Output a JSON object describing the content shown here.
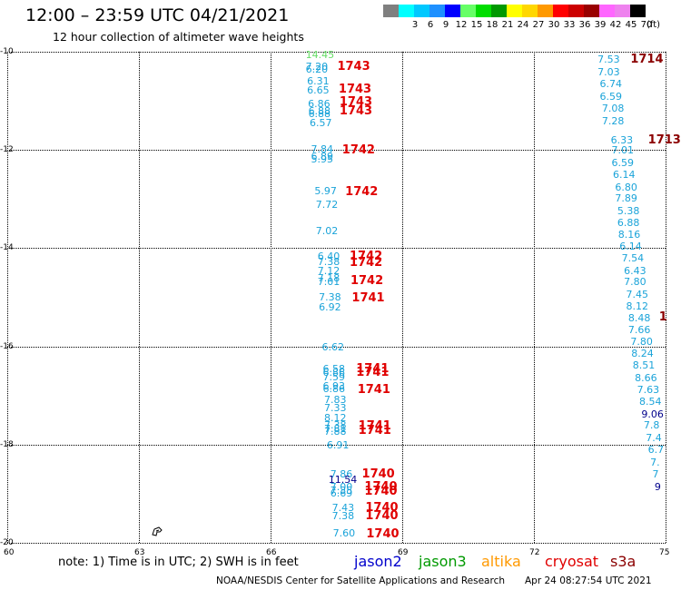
{
  "header": {
    "title": "12:00 – 23:59 UTC 04/21/2021",
    "subtitle": "12 hour collection of altimeter wave heights"
  },
  "legend": {
    "unit": "(ft)",
    "bins": [
      {
        "label": "",
        "color": "#7f7f7f"
      },
      {
        "label": "3",
        "color": "#00ffff"
      },
      {
        "label": "6",
        "color": "#00c8ff"
      },
      {
        "label": "9",
        "color": "#1e90ff"
      },
      {
        "label": "12",
        "color": "#0000ff"
      },
      {
        "label": "15",
        "color": "#66ff66"
      },
      {
        "label": "18",
        "color": "#00dd00"
      },
      {
        "label": "21",
        "color": "#009900"
      },
      {
        "label": "24",
        "color": "#ffff00"
      },
      {
        "label": "27",
        "color": "#ffd700"
      },
      {
        "label": "30",
        "color": "#ff9900"
      },
      {
        "label": "33",
        "color": "#ff0000"
      },
      {
        "label": "36",
        "color": "#cc0000"
      },
      {
        "label": "39",
        "color": "#990000"
      },
      {
        "label": "42",
        "color": "#ff66ff"
      },
      {
        "label": "45",
        "color": "#ee82ee"
      },
      {
        "label": "70",
        "color": "#000000"
      }
    ]
  },
  "axes": {
    "y_ticks": [
      "-10",
      "-12",
      "-14",
      "-16",
      "-18",
      "-20"
    ],
    "x_ticks": [
      "60",
      "63",
      "66",
      "69",
      "72",
      "75"
    ],
    "lon_range": [
      60,
      75
    ],
    "lat_range": [
      -20,
      -10
    ]
  },
  "colors": {
    "wave": "#1aa3d9",
    "pass_red": "#e00000",
    "pass_dark": "#8b0000"
  },
  "track_points": [
    {
      "lon": 66.8,
      "lat": -10.05,
      "text": "14.45",
      "color": "#66dd66"
    },
    {
      "lon": 66.8,
      "lat": -10.3,
      "text": "7.20",
      "color": "#1aa3d9"
    },
    {
      "lon": 66.8,
      "lat": -10.35,
      "text": "6.20",
      "color": "#1aa3d9"
    },
    {
      "lon": 66.83,
      "lat": -10.6,
      "text": "6.31",
      "color": "#1aa3d9"
    },
    {
      "lon": 66.83,
      "lat": -10.77,
      "text": "6.65",
      "color": "#1aa3d9"
    },
    {
      "lon": 66.85,
      "lat": -11.05,
      "text": "6.86",
      "color": "#1aa3d9"
    },
    {
      "lon": 66.86,
      "lat": -11.2,
      "text": "6.88",
      "color": "#1aa3d9"
    },
    {
      "lon": 66.86,
      "lat": -11.25,
      "text": "6.88",
      "color": "#1aa3d9"
    },
    {
      "lon": 66.89,
      "lat": -11.45,
      "text": "6.57",
      "color": "#1aa3d9"
    },
    {
      "lon": 66.92,
      "lat": -11.98,
      "text": "7.84",
      "color": "#1aa3d9"
    },
    {
      "lon": 66.92,
      "lat": -12.13,
      "text": "6.89",
      "color": "#1aa3d9"
    },
    {
      "lon": 66.92,
      "lat": -12.18,
      "text": "5.95",
      "color": "#1aa3d9"
    },
    {
      "lon": 67.0,
      "lat": -12.82,
      "text": "5.97",
      "color": "#1aa3d9"
    },
    {
      "lon": 67.03,
      "lat": -13.1,
      "text": "7.72",
      "color": "#1aa3d9"
    },
    {
      "lon": 67.03,
      "lat": -13.65,
      "text": "7.02",
      "color": "#1aa3d9"
    },
    {
      "lon": 67.07,
      "lat": -14.15,
      "text": "6.40",
      "color": "#1aa3d9"
    },
    {
      "lon": 67.07,
      "lat": -14.27,
      "text": "7.38",
      "color": "#1aa3d9"
    },
    {
      "lon": 67.07,
      "lat": -14.45,
      "text": "7.12",
      "color": "#1aa3d9"
    },
    {
      "lon": 67.07,
      "lat": -14.6,
      "text": "7.18",
      "color": "#1aa3d9"
    },
    {
      "lon": 67.07,
      "lat": -14.67,
      "text": "7.01",
      "color": "#1aa3d9"
    },
    {
      "lon": 67.1,
      "lat": -14.99,
      "text": "7.38",
      "color": "#1aa3d9"
    },
    {
      "lon": 67.1,
      "lat": -15.2,
      "text": "6.92",
      "color": "#1aa3d9"
    },
    {
      "lon": 67.17,
      "lat": -16.0,
      "text": "6.62",
      "color": "#1aa3d9"
    },
    {
      "lon": 67.19,
      "lat": -16.45,
      "text": "6.58",
      "color": "#1aa3d9"
    },
    {
      "lon": 67.19,
      "lat": -16.52,
      "text": "6.86",
      "color": "#1aa3d9"
    },
    {
      "lon": 67.19,
      "lat": -16.62,
      "text": "7.59",
      "color": "#1aa3d9"
    },
    {
      "lon": 67.19,
      "lat": -16.8,
      "text": "6.93",
      "color": "#1aa3d9"
    },
    {
      "lon": 67.19,
      "lat": -16.86,
      "text": "6.86",
      "color": "#1aa3d9"
    },
    {
      "lon": 67.22,
      "lat": -17.08,
      "text": "7.83",
      "color": "#1aa3d9"
    },
    {
      "lon": 67.22,
      "lat": -17.25,
      "text": "7.33",
      "color": "#1aa3d9"
    },
    {
      "lon": 67.22,
      "lat": -17.45,
      "text": "8.12",
      "color": "#1aa3d9"
    },
    {
      "lon": 67.22,
      "lat": -17.6,
      "text": "7.38",
      "color": "#1aa3d9"
    },
    {
      "lon": 67.22,
      "lat": -17.68,
      "text": "7.81",
      "color": "#1aa3d9"
    },
    {
      "lon": 67.22,
      "lat": -17.73,
      "text": "7.88",
      "color": "#1aa3d9"
    },
    {
      "lon": 67.28,
      "lat": -18.0,
      "text": "6.91",
      "color": "#1aa3d9"
    },
    {
      "lon": 67.36,
      "lat": -18.6,
      "text": "7.86",
      "color": "#1aa3d9"
    },
    {
      "lon": 67.32,
      "lat": -18.7,
      "text": "11.54",
      "color": "#00008b"
    },
    {
      "lon": 67.36,
      "lat": -18.85,
      "text": "7.00",
      "color": "#1aa3d9"
    },
    {
      "lon": 67.36,
      "lat": -18.92,
      "text": "7.35",
      "color": "#1aa3d9"
    },
    {
      "lon": 67.36,
      "lat": -18.98,
      "text": "6.69",
      "color": "#1aa3d9"
    },
    {
      "lon": 67.4,
      "lat": -19.28,
      "text": "7.43",
      "color": "#1aa3d9"
    },
    {
      "lon": 67.4,
      "lat": -19.45,
      "text": "7.38",
      "color": "#1aa3d9"
    },
    {
      "lon": 67.42,
      "lat": -19.8,
      "text": "7.60",
      "color": "#1aa3d9"
    },
    {
      "lon": 73.45,
      "lat": -10.15,
      "text": "7.53",
      "color": "#1aa3d9"
    },
    {
      "lon": 73.45,
      "lat": -10.4,
      "text": "7.03",
      "color": "#1aa3d9"
    },
    {
      "lon": 73.5,
      "lat": -10.65,
      "text": "6.74",
      "color": "#1aa3d9"
    },
    {
      "lon": 73.5,
      "lat": -10.9,
      "text": "6.59",
      "color": "#1aa3d9"
    },
    {
      "lon": 73.55,
      "lat": -11.15,
      "text": "7.08",
      "color": "#1aa3d9"
    },
    {
      "lon": 73.55,
      "lat": -11.4,
      "text": "7.28",
      "color": "#1aa3d9"
    },
    {
      "lon": 73.75,
      "lat": -11.8,
      "text": "6.33",
      "color": "#1aa3d9"
    },
    {
      "lon": 73.77,
      "lat": -12.0,
      "text": "7.01",
      "color": "#1aa3d9"
    },
    {
      "lon": 73.77,
      "lat": -12.25,
      "text": "6.59",
      "color": "#1aa3d9"
    },
    {
      "lon": 73.8,
      "lat": -12.5,
      "text": "6.14",
      "color": "#1aa3d9"
    },
    {
      "lon": 73.85,
      "lat": -12.75,
      "text": "6.80",
      "color": "#1aa3d9"
    },
    {
      "lon": 73.85,
      "lat": -12.98,
      "text": "7.89",
      "color": "#1aa3d9"
    },
    {
      "lon": 73.9,
      "lat": -13.24,
      "text": "5.38",
      "color": "#1aa3d9"
    },
    {
      "lon": 73.9,
      "lat": -13.48,
      "text": "6.88",
      "color": "#1aa3d9"
    },
    {
      "lon": 73.92,
      "lat": -13.72,
      "text": "8.16",
      "color": "#1aa3d9"
    },
    {
      "lon": 73.95,
      "lat": -13.96,
      "text": "6.14",
      "color": "#1aa3d9"
    },
    {
      "lon": 74.0,
      "lat": -14.2,
      "text": "7.54",
      "color": "#1aa3d9"
    },
    {
      "lon": 74.05,
      "lat": -14.45,
      "text": "6.43",
      "color": "#1aa3d9"
    },
    {
      "lon": 74.05,
      "lat": -14.68,
      "text": "7.80",
      "color": "#1aa3d9"
    },
    {
      "lon": 74.1,
      "lat": -14.93,
      "text": "7.45",
      "color": "#1aa3d9"
    },
    {
      "lon": 74.1,
      "lat": -15.17,
      "text": "8.12",
      "color": "#1aa3d9"
    },
    {
      "lon": 74.15,
      "lat": -15.42,
      "text": "8.48",
      "color": "#1aa3d9"
    },
    {
      "lon": 74.15,
      "lat": -15.66,
      "text": "7.66",
      "color": "#1aa3d9"
    },
    {
      "lon": 74.2,
      "lat": -15.9,
      "text": "7.80",
      "color": "#1aa3d9"
    },
    {
      "lon": 74.22,
      "lat": -16.14,
      "text": "8.24",
      "color": "#1aa3d9"
    },
    {
      "lon": 74.25,
      "lat": -16.38,
      "text": "8.51",
      "color": "#1aa3d9"
    },
    {
      "lon": 74.3,
      "lat": -16.63,
      "text": "8.66",
      "color": "#1aa3d9"
    },
    {
      "lon": 74.35,
      "lat": -16.88,
      "text": "7.63",
      "color": "#1aa3d9"
    },
    {
      "lon": 74.4,
      "lat": -17.12,
      "text": "8.54",
      "color": "#1aa3d9"
    },
    {
      "lon": 74.45,
      "lat": -17.37,
      "text": "9.06",
      "color": "#00008b"
    },
    {
      "lon": 74.5,
      "lat": -17.6,
      "text": "7.8",
      "color": "#1aa3d9"
    },
    {
      "lon": 74.55,
      "lat": -17.85,
      "text": "7.4",
      "color": "#1aa3d9"
    },
    {
      "lon": 74.6,
      "lat": -18.1,
      "text": "6.7",
      "color": "#1aa3d9"
    },
    {
      "lon": 74.65,
      "lat": -18.35,
      "text": "7.",
      "color": "#1aa3d9"
    },
    {
      "lon": 74.7,
      "lat": -18.6,
      "text": "7",
      "color": "#1aa3d9"
    },
    {
      "lon": 74.75,
      "lat": -18.85,
      "text": "9",
      "color": "#00008b"
    }
  ],
  "pass_labels": [
    {
      "lon": 67.52,
      "lat": -10.3,
      "text": "1743",
      "color": "#e00000"
    },
    {
      "lon": 67.55,
      "lat": -10.75,
      "text": "1743",
      "color": "#e00000"
    },
    {
      "lon": 67.57,
      "lat": -11.02,
      "text": "1743",
      "color": "#e00000"
    },
    {
      "lon": 67.57,
      "lat": -11.2,
      "text": "1743",
      "color": "#e00000"
    },
    {
      "lon": 67.63,
      "lat": -12.0,
      "text": "1742",
      "color": "#e00000"
    },
    {
      "lon": 67.7,
      "lat": -12.85,
      "text": "1742",
      "color": "#e00000"
    },
    {
      "lon": 67.8,
      "lat": -14.15,
      "text": "1742",
      "color": "#e00000"
    },
    {
      "lon": 67.8,
      "lat": -14.28,
      "text": "1742",
      "color": "#e00000"
    },
    {
      "lon": 67.82,
      "lat": -14.65,
      "text": "1742",
      "color": "#e00000"
    },
    {
      "lon": 67.85,
      "lat": -15.0,
      "text": "1741",
      "color": "#e00000"
    },
    {
      "lon": 67.95,
      "lat": -16.45,
      "text": "1741",
      "color": "#e00000"
    },
    {
      "lon": 67.95,
      "lat": -16.52,
      "text": "1741",
      "color": "#e00000"
    },
    {
      "lon": 67.98,
      "lat": -16.88,
      "text": "1741",
      "color": "#e00000"
    },
    {
      "lon": 68.0,
      "lat": -17.62,
      "text": "1741",
      "color": "#e00000"
    },
    {
      "lon": 68.0,
      "lat": -17.7,
      "text": "1741",
      "color": "#e00000"
    },
    {
      "lon": 68.08,
      "lat": -18.6,
      "text": "1740",
      "color": "#e00000"
    },
    {
      "lon": 68.14,
      "lat": -18.85,
      "text": "1740",
      "color": "#e00000"
    },
    {
      "lon": 68.14,
      "lat": -18.95,
      "text": "1740",
      "color": "#e00000"
    },
    {
      "lon": 68.16,
      "lat": -19.28,
      "text": "1740",
      "color": "#e00000"
    },
    {
      "lon": 68.16,
      "lat": -19.45,
      "text": "1740",
      "color": "#e00000"
    },
    {
      "lon": 68.18,
      "lat": -19.82,
      "text": "1740",
      "color": "#e00000"
    },
    {
      "lon": 74.2,
      "lat": -10.15,
      "text": "1714",
      "color": "#8b0000"
    },
    {
      "lon": 74.6,
      "lat": -11.8,
      "text": "1713",
      "color": "#8b0000"
    },
    {
      "lon": 74.85,
      "lat": -15.4,
      "text": "1",
      "color": "#8b0000"
    }
  ],
  "footer": {
    "note": "note: 1) Time is in UTC; 2) SWH is in feet",
    "satellites": [
      {
        "name": "jason2",
        "color": "#0000cc"
      },
      {
        "name": "jason3",
        "color": "#009900"
      },
      {
        "name": "altika",
        "color": "#ff9900"
      },
      {
        "name": "cryosat",
        "color": "#e00000"
      },
      {
        "name": "s3a",
        "color": "#8b0000"
      }
    ],
    "credit": "NOAA/NESDIS Center for Satellite Applications and Research",
    "timestamp": "Apr 24 08:27:54 UTC 2021"
  }
}
